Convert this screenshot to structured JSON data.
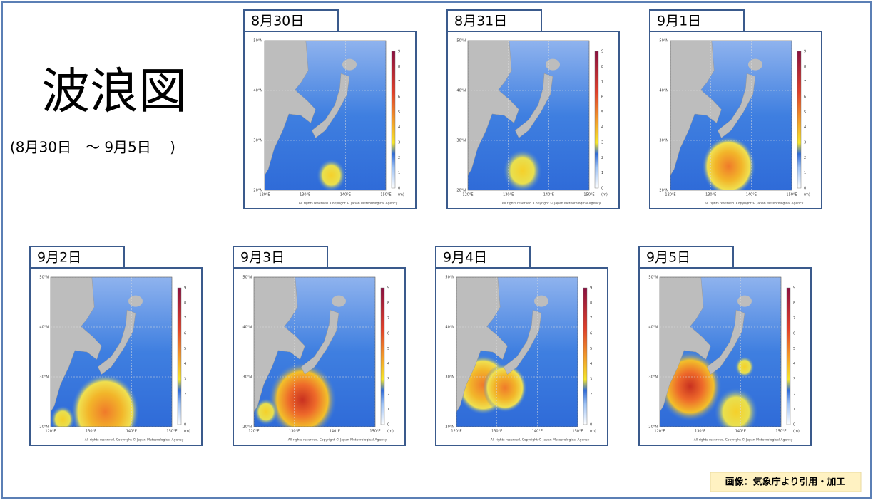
{
  "title": "波浪図",
  "subtitle": "(8月30日　～ 9月5日　 )",
  "panels": [
    {
      "date": "8月30日"
    },
    {
      "date": "8月31日"
    },
    {
      "date": "9月1日"
    },
    {
      "date": "9月2日"
    },
    {
      "date": "9月3日"
    },
    {
      "date": "9月4日"
    },
    {
      "date": "9月5日"
    }
  ],
  "map_legend": {
    "lat_labels": [
      "50°N",
      "40°N",
      "30°N",
      "20°N"
    ],
    "lon_labels": [
      "120°E",
      "130°E",
      "140°E",
      "150°E"
    ],
    "scale_labels": [
      9,
      8,
      7,
      6,
      5,
      4,
      3,
      2,
      1,
      0
    ],
    "unit": "(m)",
    "copyright": "All rights reserved. Copyright © Japan Meteorological Agency"
  },
  "credit": "画像：気象庁より引用・加工"
}
